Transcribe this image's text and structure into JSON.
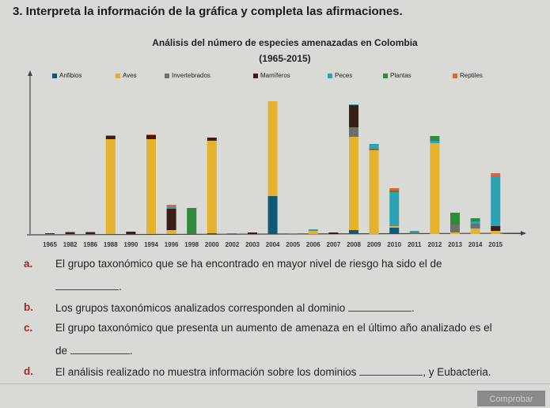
{
  "question_title": "3. Interpreta la información de la gráfica y completa las afirmaciones.",
  "questions": [
    {
      "letter": "a.",
      "text": "El grupo taxonómico que se ha encontrado en mayor nivel de riesgo ha sido el de",
      "after": "."
    },
    {
      "letter": "b.",
      "text": "Los grupos taxonómicos analizados corresponden al dominio",
      "after": "."
    },
    {
      "letter": "c.",
      "text": "El grupo taxonómico que presenta un aumento de amenaza en el último año analizado es el",
      "line2": "de",
      "after": "."
    },
    {
      "letter": "d.",
      "text": "El análisis realizado no muestra información sobre los dominios",
      "after": ", y Eubacteria."
    }
  ],
  "check_button": "Comprobar",
  "chart_data": {
    "type": "bar",
    "stacked": true,
    "title": "Análisis del número de especies amenazadas en Colombia",
    "subtitle": "(1965-2015)",
    "xlabel": "",
    "ylabel": "",
    "legend_position": "top",
    "grid": false,
    "categories": [
      "1965",
      "1982",
      "1986",
      "1988",
      "1990",
      "1994",
      "1996",
      "1998",
      "2000",
      "2002",
      "2003",
      "2004",
      "2005",
      "2006",
      "2007",
      "2008",
      "2009",
      "2010",
      "2011",
      "2012",
      "2013",
      "2014",
      "2015"
    ],
    "series": [
      {
        "name": "Anfibios",
        "color": "#0f5876",
        "values": [
          0,
          0,
          0,
          0,
          0,
          0,
          0,
          0,
          1,
          0,
          0,
          48,
          0,
          0,
          0,
          5,
          0,
          8,
          0,
          0,
          0,
          0,
          0
        ]
      },
      {
        "name": "Aves",
        "color": "#e6b22e",
        "values": [
          0,
          0,
          0,
          120,
          0,
          120,
          5,
          0,
          117,
          0,
          0,
          120,
          0,
          4,
          0,
          118,
          106,
          2,
          0,
          115,
          2,
          7,
          4
        ]
      },
      {
        "name": "Invertebrados",
        "color": "#6e6e6a",
        "values": [
          0,
          0,
          0,
          0,
          0,
          0,
          0,
          0,
          0,
          1,
          0,
          0,
          0.5,
          0,
          0,
          12,
          2,
          0,
          2,
          0,
          10,
          6,
          0
        ]
      },
      {
        "name": "Mamíferos",
        "color": "#3a1e1a",
        "values": [
          1,
          2,
          2,
          4,
          3,
          5,
          27,
          0,
          4,
          0,
          2,
          0,
          0,
          0,
          2,
          28,
          0,
          0,
          0,
          0,
          0,
          0,
          6
        ]
      },
      {
        "name": "Peces",
        "color": "#2ba3b5",
        "values": [
          0,
          0,
          0,
          0,
          0,
          0,
          3,
          0,
          0,
          0,
          0,
          0,
          0,
          2,
          0,
          1,
          6,
          43,
          2,
          3,
          0,
          3,
          63
        ]
      },
      {
        "name": "Plantas",
        "color": "#2f8a3a",
        "values": [
          0,
          0,
          0,
          0,
          0,
          0,
          0,
          33,
          0,
          0,
          0,
          0,
          0,
          0,
          0,
          0,
          0,
          2,
          0,
          6,
          15,
          4,
          0
        ]
      },
      {
        "name": "Reptiles",
        "color": "#e0643a",
        "values": [
          0,
          1,
          1,
          1,
          0,
          1,
          2,
          0,
          0,
          0,
          0,
          0,
          0,
          0,
          0,
          0,
          0,
          3,
          0,
          0,
          0,
          0,
          4
        ]
      }
    ]
  }
}
